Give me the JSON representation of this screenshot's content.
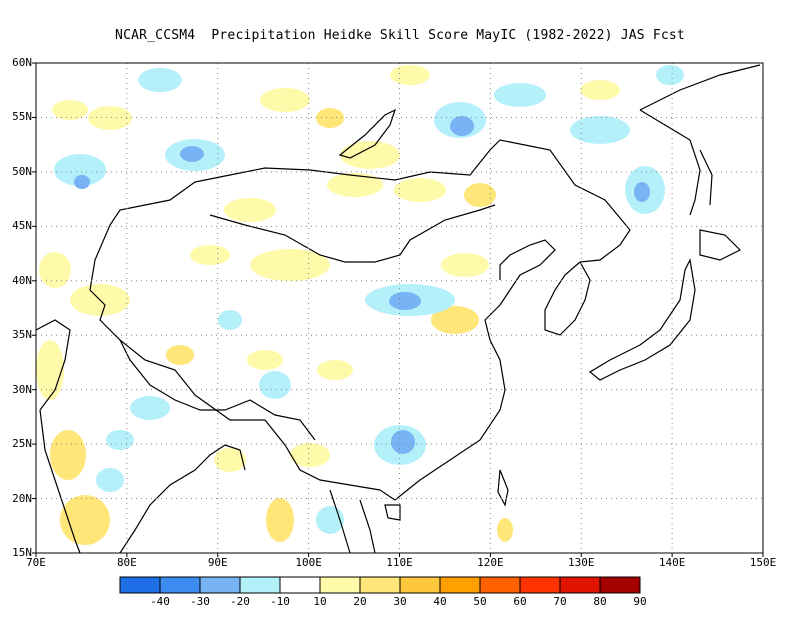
{
  "title": "NCAR_CCSM4  Precipitation Heidke Skill Score MayIC (1982-2022) JAS Fcst",
  "map": {
    "lat_range": [
      15,
      60
    ],
    "lon_range": [
      70,
      150
    ],
    "lat_ticks": [
      "60N",
      "55N",
      "50N",
      "45N",
      "40N",
      "35N",
      "30N",
      "25N",
      "20N",
      "15N"
    ],
    "lon_ticks": [
      "70E",
      "80E",
      "90E",
      "100E",
      "110E",
      "120E",
      "130E",
      "140E",
      "150E"
    ],
    "grid": true
  },
  "colorbar": {
    "labels": [
      "-40",
      "-30",
      "-20",
      "-10",
      "10",
      "20",
      "30",
      "40",
      "50",
      "60",
      "70",
      "80",
      "90"
    ],
    "colors": [
      "#1e6ee6",
      "#3c8cf0",
      "#78b4f5",
      "#b4f0fa",
      "#ffffff",
      "#fffaaa",
      "#ffe678",
      "#ffc83c",
      "#ffa000",
      "#ff6000",
      "#ff3200",
      "#e11400",
      "#a50000"
    ]
  }
}
